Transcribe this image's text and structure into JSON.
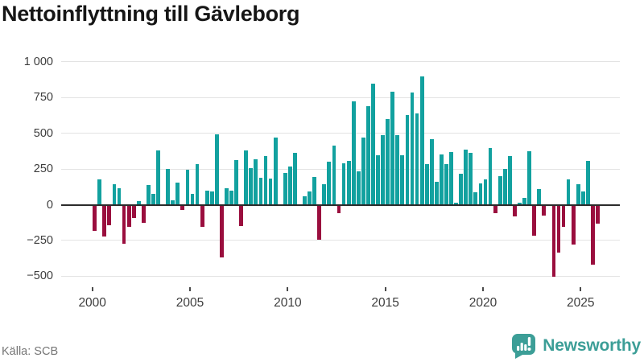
{
  "header": {
    "title": "Nettoinflyttning till Gävleborg"
  },
  "footer": {
    "source": "Källa: SCB",
    "brand": "Newsworthy"
  },
  "colors": {
    "positive_bar": "#12a19f",
    "negative_bar": "#9a0e3e",
    "zero_line": "#2b2b2b",
    "gridline": "#e3e3e3",
    "axis_text": "#3d3d3d",
    "muted_text": "#767676",
    "brand_teal": "#3c9e97"
  },
  "chart_data": {
    "type": "bar",
    "title": "Nettoinflyttning till Gävleborg",
    "frequency": "quarterly",
    "x_start": "2000 Q1",
    "x_end": "2025 Q4",
    "ylim": [
      -500,
      1000
    ],
    "grid": true,
    "legend": false,
    "y_ticks": [
      {
        "label": "1 000",
        "value": 1000
      },
      {
        "label": "750",
        "value": 750
      },
      {
        "label": "500",
        "value": 500
      },
      {
        "label": "250",
        "value": 250
      },
      {
        "label": "0",
        "value": 0
      },
      {
        "label": "−250",
        "value": -250
      },
      {
        "label": "−500",
        "value": -500
      }
    ],
    "x_ticks": [
      {
        "label": "2000",
        "year": 2000
      },
      {
        "label": "2005",
        "year": 2005
      },
      {
        "label": "2010",
        "year": 2010
      },
      {
        "label": "2015",
        "year": 2015
      },
      {
        "label": "2020",
        "year": 2020
      },
      {
        "label": "2025",
        "year": 2025
      }
    ],
    "categories": [
      "2000 Q1",
      "2000 Q2",
      "2000 Q3",
      "2000 Q4",
      "2001 Q1",
      "2001 Q2",
      "2001 Q3",
      "2001 Q4",
      "2002 Q1",
      "2002 Q2",
      "2002 Q3",
      "2002 Q4",
      "2003 Q1",
      "2003 Q2",
      "2003 Q3",
      "2003 Q4",
      "2004 Q1",
      "2004 Q2",
      "2004 Q3",
      "2004 Q4",
      "2005 Q1",
      "2005 Q2",
      "2005 Q3",
      "2005 Q4",
      "2006 Q1",
      "2006 Q2",
      "2006 Q3",
      "2006 Q4",
      "2007 Q1",
      "2007 Q2",
      "2007 Q3",
      "2007 Q4",
      "2008 Q1",
      "2008 Q2",
      "2008 Q3",
      "2008 Q4",
      "2009 Q1",
      "2009 Q2",
      "2009 Q3",
      "2009 Q4",
      "2010 Q1",
      "2010 Q2",
      "2010 Q3",
      "2010 Q4",
      "2011 Q1",
      "2011 Q2",
      "2011 Q3",
      "2011 Q4",
      "2012 Q1",
      "2012 Q2",
      "2012 Q3",
      "2012 Q4",
      "2013 Q1",
      "2013 Q2",
      "2013 Q3",
      "2013 Q4",
      "2014 Q1",
      "2014 Q2",
      "2014 Q3",
      "2014 Q4",
      "2015 Q1",
      "2015 Q2",
      "2015 Q3",
      "2015 Q4",
      "2016 Q1",
      "2016 Q2",
      "2016 Q3",
      "2016 Q4",
      "2017 Q1",
      "2017 Q2",
      "2017 Q3",
      "2017 Q4",
      "2018 Q1",
      "2018 Q2",
      "2018 Q3",
      "2018 Q4",
      "2019 Q1",
      "2019 Q2",
      "2019 Q3",
      "2019 Q4",
      "2020 Q1",
      "2020 Q2",
      "2020 Q3",
      "2020 Q4",
      "2021 Q1",
      "2021 Q2",
      "2021 Q3",
      "2021 Q4",
      "2022 Q1",
      "2022 Q2",
      "2022 Q3",
      "2022 Q4",
      "2023 Q1",
      "2023 Q2",
      "2023 Q3",
      "2023 Q4",
      "2024 Q1",
      "2024 Q2",
      "2024 Q3",
      "2024 Q4",
      "2025 Q1",
      "2025 Q2",
      "2025 Q3",
      "2025 Q4"
    ],
    "values": [
      -175,
      175,
      -215,
      -135,
      145,
      115,
      -265,
      -150,
      -85,
      25,
      -120,
      140,
      75,
      380,
      0,
      250,
      30,
      155,
      -30,
      245,
      75,
      285,
      -150,
      100,
      90,
      490,
      -365,
      115,
      100,
      310,
      -145,
      380,
      255,
      320,
      190,
      340,
      180,
      470,
      0,
      220,
      265,
      365,
      0,
      60,
      95,
      195,
      -240,
      145,
      300,
      415,
      -55,
      290,
      305,
      725,
      235,
      470,
      690,
      845,
      345,
      485,
      600,
      790,
      485,
      345,
      625,
      785,
      640,
      895,
      285,
      460,
      160,
      350,
      285,
      370,
      15,
      215,
      385,
      365,
      85,
      150,
      175,
      395,
      -55,
      200,
      250,
      340,
      -75,
      15,
      50,
      375,
      -210,
      110,
      -70,
      0,
      -500,
      -330,
      -150,
      175,
      -275,
      145,
      90,
      305,
      -415,
      -125
    ]
  }
}
